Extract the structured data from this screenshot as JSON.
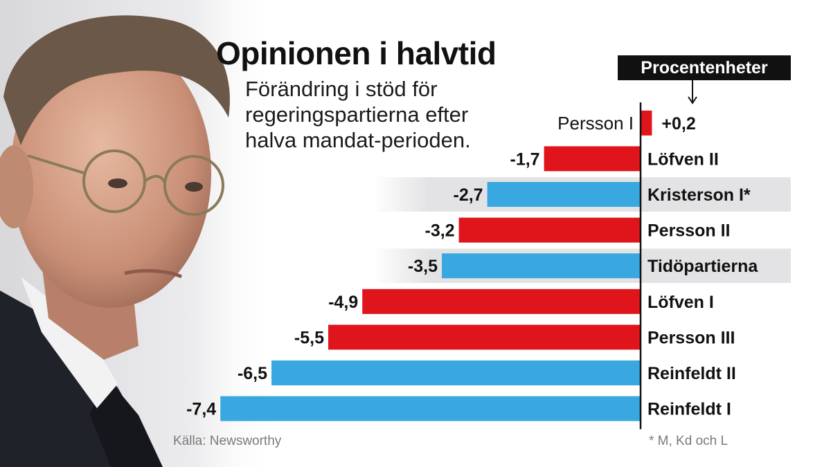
{
  "title": "Opinionen i halvtid",
  "subtitle": "Förändring i stöd för regeringspartierna efter halva mandat-perioden.",
  "units_badge": "Procentenheter",
  "source": "Källa: Newsworthy",
  "footnote": "* M, Kd och L",
  "colors": {
    "red": "#e0141b",
    "blue": "#3aa8e0",
    "highlight": "#e3e3e5",
    "axis": "#111111"
  },
  "chart_data": {
    "type": "bar",
    "orientation": "horizontal",
    "unit": "Procentenheter",
    "categories": [
      "Persson I",
      "Löfven II",
      "Kristerson I*",
      "Persson II",
      "Tidöpartierna",
      "Löfven I",
      "Persson III",
      "Reinfeldt II",
      "Reinfeldt I"
    ],
    "values": [
      0.2,
      -1.7,
      -2.7,
      -3.2,
      -3.5,
      -4.9,
      -5.5,
      -6.5,
      -7.4
    ],
    "value_labels": [
      "+0,2",
      "-1,7",
      "-2,7",
      "-3,2",
      "-3,5",
      "-4,9",
      "-5,5",
      "-6,5",
      "-7,4"
    ],
    "bar_colors": [
      "red",
      "red",
      "blue",
      "red",
      "blue",
      "red",
      "red",
      "blue",
      "blue"
    ],
    "highlighted": [
      false,
      false,
      true,
      false,
      true,
      false,
      false,
      false,
      false
    ],
    "xlim": [
      -7.4,
      0.2
    ]
  }
}
